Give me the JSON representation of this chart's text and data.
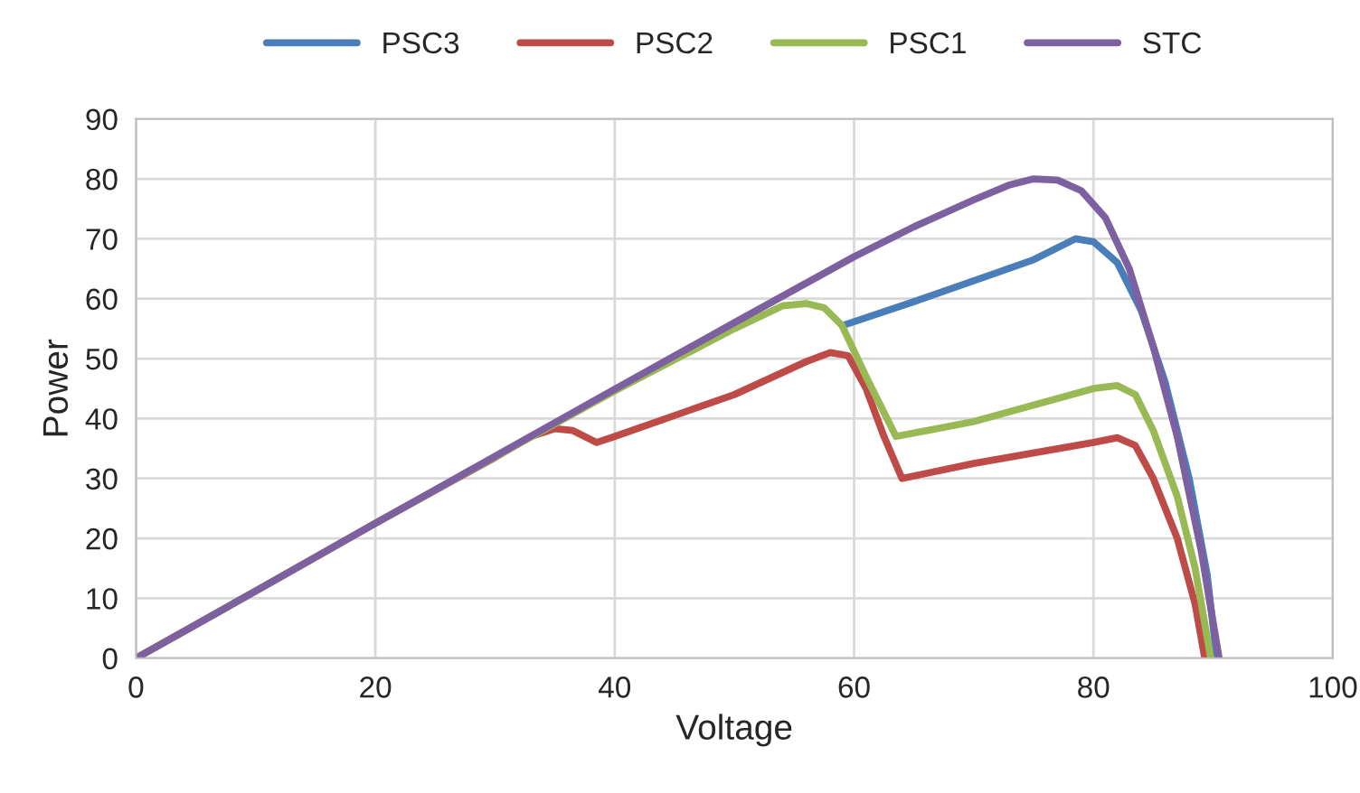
{
  "chart_data": {
    "type": "line",
    "xlabel": "Voltage",
    "ylabel": "Power",
    "xlim": [
      0,
      100
    ],
    "xticks": [
      0,
      20,
      40,
      60,
      80,
      100
    ],
    "ylim": [
      0,
      90
    ],
    "yticks": [
      0,
      10,
      20,
      30,
      40,
      50,
      60,
      70,
      80,
      90
    ],
    "grid": true,
    "legend": "top",
    "marker": "none",
    "line_style": "solid",
    "series": [
      {
        "name": "PSC3",
        "color": "#4a7ebb",
        "x": [
          59,
          65,
          70,
          75,
          78.5,
          80,
          82,
          84,
          86,
          88,
          89.5,
          90.3
        ],
        "values": [
          55.5,
          59.5,
          63,
          66.5,
          70,
          69.5,
          66,
          58,
          46,
          30,
          14,
          0
        ]
      },
      {
        "name": "PSC2",
        "color": "#be4b48",
        "x": [
          0,
          10,
          20,
          30,
          33,
          35,
          36.5,
          38.5,
          40,
          50,
          56,
          58,
          59.5,
          61,
          62.5,
          64,
          70,
          80,
          82,
          83.5,
          85,
          87,
          88.5,
          89.3
        ],
        "values": [
          0,
          11.2,
          22.5,
          33.5,
          37,
          38.3,
          38,
          36,
          37,
          44,
          49.5,
          51,
          50.5,
          45,
          37,
          30,
          32.5,
          36,
          36.8,
          35.5,
          30,
          20,
          9,
          0
        ]
      },
      {
        "name": "PSC1",
        "color": "#98b954",
        "x": [
          0,
          10,
          20,
          30,
          40,
          50,
          54,
          56,
          57.5,
          59,
          61,
          63.5,
          70,
          80,
          82,
          83.5,
          85,
          87,
          88.5,
          89.8
        ],
        "values": [
          0,
          11.2,
          22.5,
          33.6,
          44.6,
          55,
          58.8,
          59.2,
          58.5,
          55.5,
          47,
          37,
          39.5,
          45,
          45.5,
          44,
          38,
          27,
          15,
          0
        ]
      },
      {
        "name": "STC",
        "color": "#7d60a0",
        "x": [
          0,
          10,
          20,
          30,
          40,
          50,
          60,
          65,
          70,
          73,
          75,
          77,
          79,
          81,
          83,
          85,
          87,
          89,
          90.5
        ],
        "values": [
          0,
          11.2,
          22.5,
          33.7,
          44.9,
          56,
          67,
          72,
          76.5,
          79,
          80,
          79.8,
          78,
          73.5,
          65,
          52,
          37,
          18,
          0
        ]
      }
    ]
  }
}
